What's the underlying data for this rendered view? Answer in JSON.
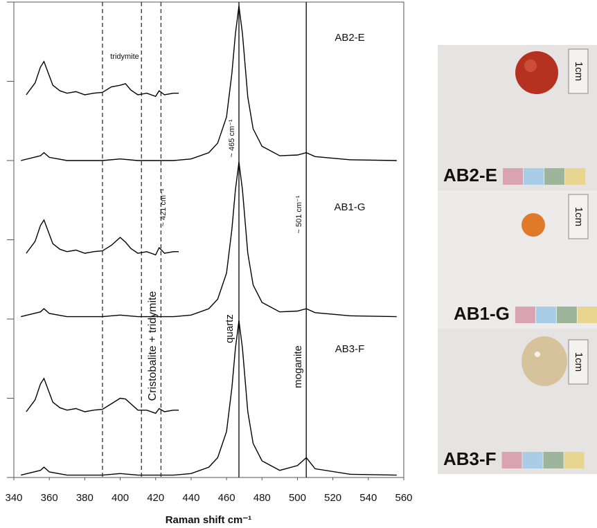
{
  "chart_data": {
    "type": "line",
    "xlabel": "Raman shift cm⁻¹",
    "xlim": [
      340,
      560
    ],
    "xticks": [
      340,
      360,
      380,
      400,
      420,
      440,
      460,
      480,
      500,
      520,
      540,
      560
    ],
    "ylim": [
      0,
      6
    ],
    "yticks": [
      0,
      1,
      2,
      3,
      4,
      5,
      6
    ],
    "series": [
      {
        "name": "AB2-E",
        "color": "#000000",
        "x": [
          344,
          355,
          357,
          360,
          370,
          390,
          400,
          410,
          430,
          440,
          450,
          455,
          460,
          463,
          465,
          467,
          469,
          472,
          475,
          480,
          490,
          500,
          505,
          510,
          530,
          556
        ],
        "values": [
          4.0,
          4.06,
          4.1,
          4.04,
          4.0,
          4.0,
          4.02,
          4.0,
          4.0,
          4.02,
          4.1,
          4.22,
          4.55,
          5.1,
          5.6,
          5.95,
          5.6,
          4.8,
          4.4,
          4.18,
          4.06,
          4.07,
          4.1,
          4.05,
          4.01,
          4.0
        ]
      },
      {
        "color": "#000000",
        "x": [
          347,
          352,
          355,
          357,
          359,
          362,
          366,
          370,
          375,
          380,
          385,
          390,
          395,
          400,
          403,
          406,
          410,
          415,
          420,
          422,
          425,
          430,
          433
        ],
        "values": [
          4.83,
          4.98,
          5.18,
          5.25,
          5.13,
          4.95,
          4.88,
          4.85,
          4.87,
          4.83,
          4.85,
          4.86,
          4.93,
          4.95,
          4.97,
          4.89,
          4.83,
          4.85,
          4.81,
          4.88,
          4.83,
          4.85,
          4.85
        ]
      },
      {
        "name": "AB1-G",
        "color": "#000000",
        "x": [
          344,
          355,
          357,
          360,
          370,
          390,
          400,
          410,
          430,
          440,
          450,
          455,
          460,
          463,
          465,
          467,
          469,
          472,
          475,
          480,
          490,
          500,
          505,
          510,
          530,
          556
        ],
        "values": [
          2.03,
          2.09,
          2.13,
          2.07,
          2.03,
          2.03,
          2.05,
          2.03,
          2.03,
          2.05,
          2.13,
          2.25,
          2.58,
          3.13,
          3.63,
          3.98,
          3.63,
          2.83,
          2.43,
          2.21,
          2.09,
          2.1,
          2.13,
          2.08,
          2.04,
          2.03
        ]
      },
      {
        "color": "#000000",
        "x": [
          347,
          352,
          355,
          357,
          359,
          362,
          366,
          370,
          375,
          380,
          385,
          390,
          395,
          400,
          403,
          406,
          410,
          415,
          420,
          422,
          425,
          430,
          433
        ],
        "values": [
          2.83,
          2.98,
          3.18,
          3.25,
          3.13,
          2.95,
          2.88,
          2.85,
          2.87,
          2.83,
          2.85,
          2.86,
          2.93,
          3.03,
          2.97,
          2.89,
          2.83,
          2.85,
          2.81,
          2.9,
          2.83,
          2.85,
          2.85
        ]
      },
      {
        "name": "AB3-F",
        "color": "#000000",
        "x": [
          344,
          355,
          357,
          360,
          370,
          390,
          400,
          410,
          430,
          440,
          450,
          455,
          460,
          463,
          465,
          467,
          469,
          472,
          475,
          480,
          490,
          500,
          505,
          510,
          530,
          556
        ],
        "values": [
          0.03,
          0.09,
          0.13,
          0.07,
          0.03,
          0.03,
          0.05,
          0.03,
          0.03,
          0.05,
          0.13,
          0.25,
          0.58,
          1.13,
          1.63,
          1.98,
          1.63,
          0.83,
          0.43,
          0.21,
          0.09,
          0.15,
          0.25,
          0.11,
          0.04,
          0.03
        ]
      },
      {
        "color": "#000000",
        "x": [
          347,
          352,
          355,
          357,
          359,
          362,
          366,
          370,
          375,
          380,
          385,
          390,
          395,
          400,
          403,
          406,
          410,
          415,
          420,
          422,
          425,
          430,
          433
        ],
        "values": [
          0.83,
          0.98,
          1.18,
          1.25,
          1.13,
          0.95,
          0.88,
          0.85,
          0.87,
          0.83,
          0.85,
          0.86,
          0.93,
          1.0,
          0.99,
          0.93,
          0.85,
          0.85,
          0.81,
          0.87,
          0.83,
          0.85,
          0.85
        ]
      }
    ],
    "reference_lines": [
      {
        "x": 390,
        "style": "dashed"
      },
      {
        "x": 412,
        "style": "dashed"
      },
      {
        "x": 423,
        "style": "dashed"
      },
      {
        "x": 467,
        "style": "solid"
      },
      {
        "x": 505,
        "style": "solid"
      }
    ],
    "annotations": [
      "tridymite",
      "~ 421 cm⁻¹",
      "~ 465 cm⁻¹",
      "~ 501 cm⁻¹",
      "Cristobalite + tridymite",
      "quartz",
      "moganite"
    ]
  },
  "photo_panel": {
    "samples": [
      {
        "label": "AB2-E",
        "scale": "1cm"
      },
      {
        "label": "AB1-G",
        "scale": "1cm"
      },
      {
        "label": "AB3-F",
        "scale": "1cm"
      }
    ]
  }
}
